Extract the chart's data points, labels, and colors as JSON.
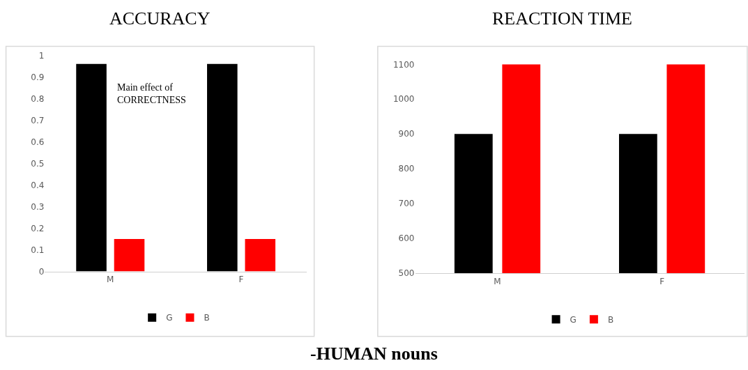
{
  "chart_data": [
    {
      "type": "bar",
      "title": "ACCURACY",
      "categories": [
        "M",
        "F"
      ],
      "series": [
        {
          "name": "G",
          "color": "#000000",
          "values": [
            0.96,
            0.96
          ]
        },
        {
          "name": "B",
          "color": "#ff0000",
          "values": [
            0.15,
            0.15
          ]
        }
      ],
      "ylim": [
        0,
        1
      ],
      "yticks": [
        0,
        0.1,
        0.2,
        0.3,
        0.4,
        0.5,
        0.6,
        0.7,
        0.8,
        0.9,
        1
      ],
      "grid": false,
      "legend": "bottom",
      "annotations": [
        "Main effect of CORRECTNESS",
        "-HUMAN nouns"
      ]
    },
    {
      "type": "bar",
      "title": "REACTION TIME",
      "categories": [
        "M",
        "F"
      ],
      "series": [
        {
          "name": "G",
          "color": "#000000",
          "values": [
            900,
            900
          ]
        },
        {
          "name": "B",
          "color": "#ff0000",
          "values": [
            1100,
            1100
          ]
        }
      ],
      "ylim": [
        500,
        1100
      ],
      "yticks": [
        500,
        600,
        700,
        800,
        900,
        1000,
        1100
      ],
      "grid": false,
      "legend": "bottom"
    }
  ]
}
